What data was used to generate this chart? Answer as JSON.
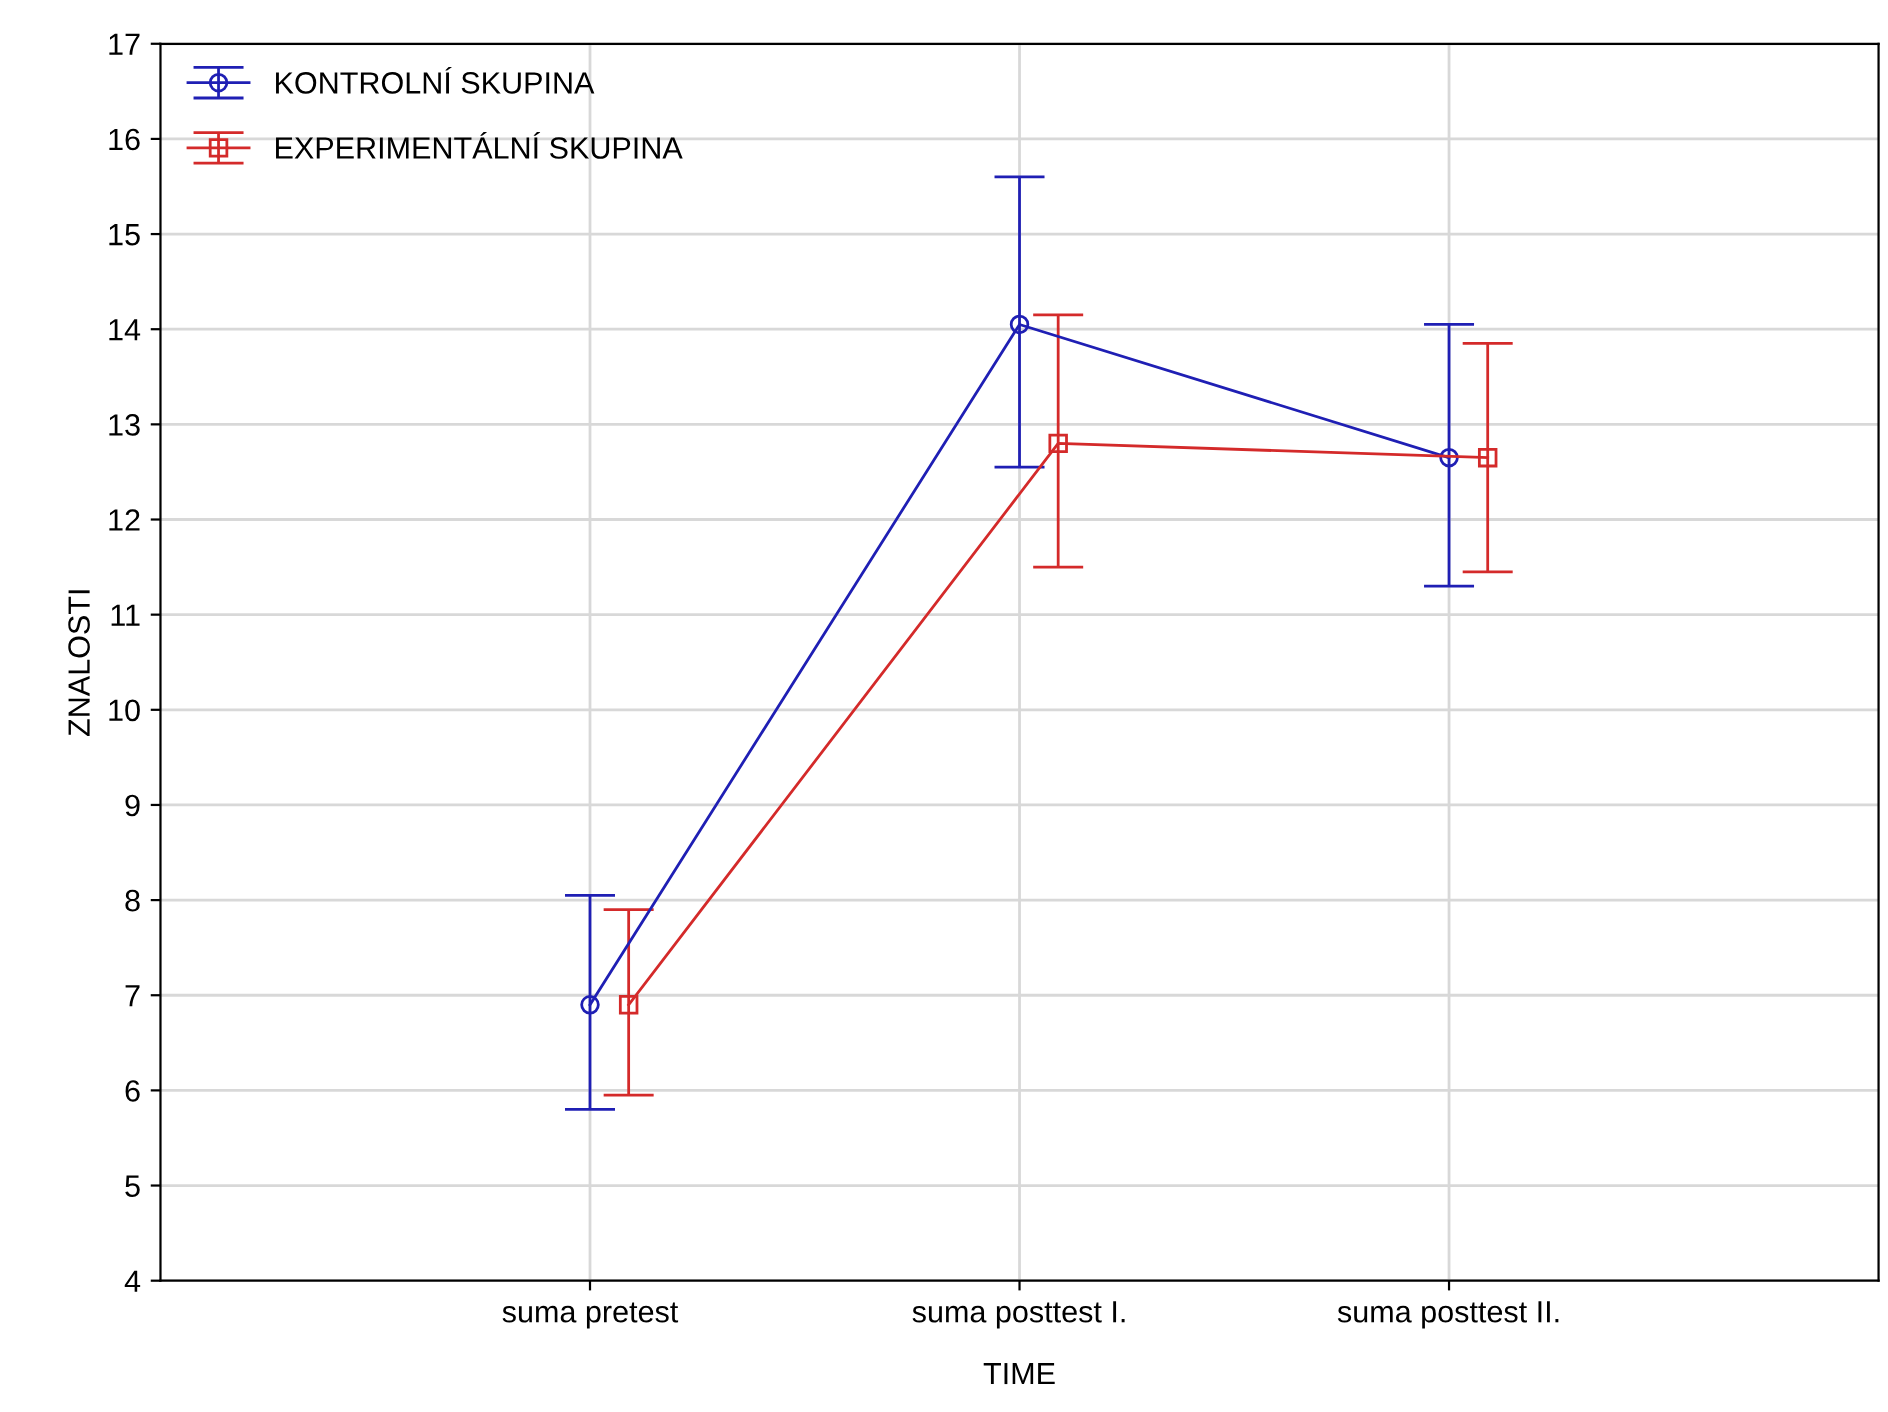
{
  "chart_data": {
    "type": "line",
    "xlabel": "TIME",
    "ylabel": "ZNALOSTI",
    "categories": [
      "suma pretest",
      "suma posttest I.",
      "suma posttest II."
    ],
    "series": [
      {
        "name": "KONTROLNÍ SKUPINA",
        "color": "#1f1fb4",
        "marker": "circle",
        "values": [
          6.9,
          14.05,
          12.65
        ],
        "errors": [
          [
            5.8,
            8.05
          ],
          [
            12.55,
            15.6
          ],
          [
            11.3,
            14.05
          ]
        ]
      },
      {
        "name": "EXPERIMENTÁLNÍ SKUPINA",
        "color": "#d42a2a",
        "marker": "square",
        "values": [
          6.9,
          12.8,
          12.65
        ],
        "errors": [
          [
            5.95,
            7.9
          ],
          [
            11.5,
            14.15
          ],
          [
            11.45,
            13.85
          ]
        ]
      }
    ],
    "ylim": [
      4,
      17
    ],
    "yticks": [
      4,
      5,
      6,
      7,
      8,
      9,
      10,
      11,
      12,
      13,
      14,
      15,
      16,
      17
    ],
    "grid": true,
    "legend": "top left",
    "line_style": "solid"
  }
}
